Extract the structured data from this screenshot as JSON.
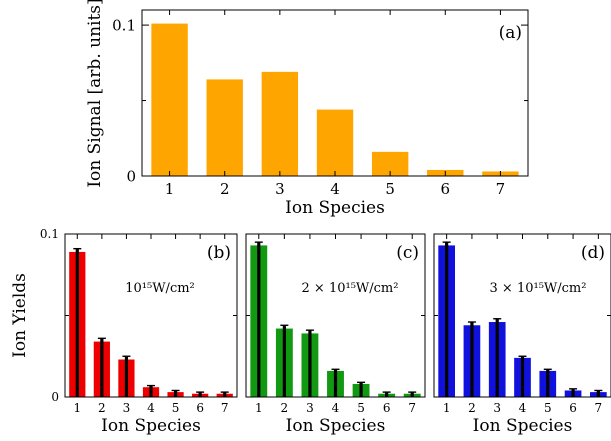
{
  "chart_data": [
    {
      "id": "a",
      "type": "bar",
      "panel_label": "(a)",
      "categories": [
        "1",
        "2",
        "3",
        "4",
        "5",
        "6",
        "7"
      ],
      "values": [
        0.101,
        0.064,
        0.069,
        0.044,
        0.016,
        0.004,
        0.003
      ],
      "xlabel": "Ion Species",
      "ylabel": "Ion Signal [arb. units]",
      "yticks": [
        "0",
        "0.1"
      ],
      "ylim": [
        0,
        0.11
      ],
      "color": "#FFA500"
    },
    {
      "id": "b",
      "type": "bar",
      "panel_label": "(b)",
      "annotation": "10¹⁵W/cm²",
      "categories": [
        "1",
        "2",
        "3",
        "4",
        "5",
        "6",
        "7"
      ],
      "values": [
        0.089,
        0.034,
        0.023,
        0.006,
        0.003,
        0.002,
        0.002
      ],
      "errors": [
        0.002,
        0.002,
        0.002,
        0.001,
        0.001,
        0.001,
        0.001
      ],
      "xlabel": "Ion Species",
      "ylabel": "Ion Yields",
      "yticks": [
        "0",
        "0.1"
      ],
      "ylim": [
        0,
        0.1
      ],
      "color": "#EE0000"
    },
    {
      "id": "c",
      "type": "bar",
      "panel_label": "(c)",
      "annotation": "2 × 10¹⁵W/cm²",
      "categories": [
        "1",
        "2",
        "3",
        "4",
        "5",
        "6",
        "7"
      ],
      "values": [
        0.093,
        0.042,
        0.039,
        0.016,
        0.008,
        0.002,
        0.002
      ],
      "errors": [
        0.002,
        0.002,
        0.002,
        0.001,
        0.001,
        0.001,
        0.001
      ],
      "xlabel": "Ion Species",
      "ylabel": "",
      "yticks": [],
      "ylim": [
        0,
        0.1
      ],
      "color": "#119911"
    },
    {
      "id": "d",
      "type": "bar",
      "panel_label": "(d)",
      "annotation": "3 × 10¹⁵W/cm²",
      "categories": [
        "1",
        "2",
        "3",
        "4",
        "5",
        "6",
        "7"
      ],
      "values": [
        0.093,
        0.044,
        0.046,
        0.024,
        0.016,
        0.004,
        0.003
      ],
      "errors": [
        0.002,
        0.002,
        0.002,
        0.001,
        0.001,
        0.001,
        0.001
      ],
      "xlabel": "Ion Species",
      "ylabel": "",
      "yticks": [],
      "ylim": [
        0,
        0.1
      ],
      "color": "#1111DD"
    }
  ]
}
